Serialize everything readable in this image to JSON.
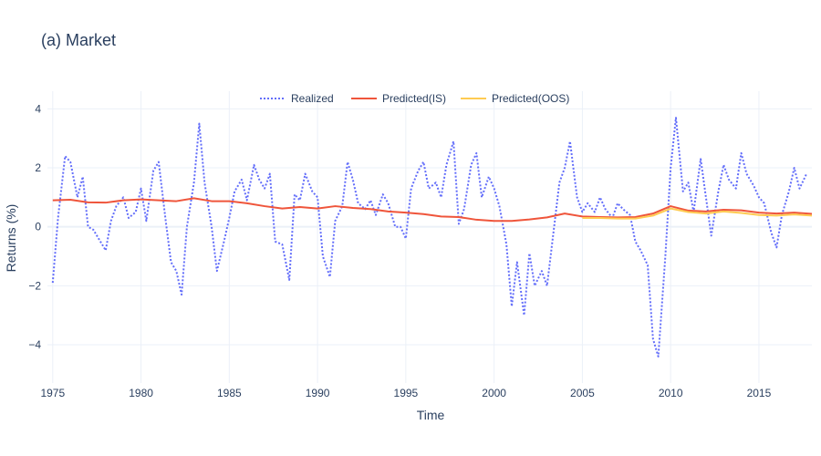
{
  "chart_data": {
    "type": "line",
    "title": "(a) Market",
    "xlabel": "Time",
    "ylabel": "Returns (%)",
    "xlim": [
      1974.7,
      2018.0
    ],
    "ylim": [
      -5.3,
      4.6
    ],
    "x_ticks": [
      1975,
      1980,
      1985,
      1990,
      1995,
      2000,
      2005,
      2010,
      2015
    ],
    "y_ticks": [
      -4,
      -2,
      0,
      2,
      4
    ],
    "y_tick_labels": [
      "−4",
      "−2",
      "0",
      "2",
      "4"
    ],
    "grid": true,
    "legend_position": "top-center",
    "series": [
      {
        "name": "Realized",
        "color": "#636efa",
        "dash": "dot",
        "x": [
          1975.0,
          1975.3,
          1975.7,
          1976.0,
          1976.4,
          1976.7,
          1977.0,
          1977.3,
          1977.6,
          1978.0,
          1978.3,
          1978.6,
          1979.0,
          1979.3,
          1979.7,
          1980.0,
          1980.3,
          1980.7,
          1981.0,
          1981.4,
          1981.7,
          1982.0,
          1982.3,
          1982.6,
          1983.0,
          1983.3,
          1983.6,
          1984.0,
          1984.3,
          1984.7,
          1985.0,
          1985.3,
          1985.7,
          1986.0,
          1986.4,
          1986.7,
          1987.0,
          1987.3,
          1987.6,
          1988.0,
          1988.4,
          1988.7,
          1989.0,
          1989.3,
          1989.7,
          1990.0,
          1990.3,
          1990.7,
          1991.0,
          1991.4,
          1991.7,
          1992.0,
          1992.3,
          1992.7,
          1993.0,
          1993.3,
          1993.7,
          1994.0,
          1994.4,
          1994.7,
          1995.0,
          1995.3,
          1995.7,
          1996.0,
          1996.3,
          1996.7,
          1997.0,
          1997.3,
          1997.7,
          1998.0,
          1998.3,
          1998.7,
          1999.0,
          1999.3,
          1999.7,
          2000.0,
          2000.3,
          2000.7,
          2001.0,
          2001.3,
          2001.7,
          2002.0,
          2002.3,
          2002.7,
          2003.0,
          2003.3,
          2003.7,
          2004.0,
          2004.3,
          2004.7,
          2005.0,
          2005.3,
          2005.7,
          2006.0,
          2006.3,
          2006.7,
          2007.0,
          2007.3,
          2007.7,
          2008.0,
          2008.3,
          2008.7,
          2009.0,
          2009.3,
          2009.7,
          2010.0,
          2010.3,
          2010.7,
          2011.0,
          2011.3,
          2011.7,
          2012.0,
          2012.3,
          2012.7,
          2013.0,
          2013.3,
          2013.7,
          2014.0,
          2014.3,
          2014.7,
          2015.0,
          2015.3,
          2015.7,
          2016.0,
          2016.3,
          2016.7,
          2017.0,
          2017.3,
          2017.7
        ],
        "y": [
          -1.9,
          0.3,
          2.4,
          2.2,
          1.0,
          1.7,
          0.0,
          -0.1,
          -0.4,
          -0.8,
          0.2,
          0.7,
          1.0,
          0.3,
          0.5,
          1.3,
          0.2,
          1.9,
          2.2,
          0.2,
          -1.2,
          -1.5,
          -2.3,
          0.0,
          1.5,
          3.5,
          1.5,
          0.0,
          -1.5,
          -0.5,
          0.3,
          1.2,
          1.6,
          0.9,
          2.1,
          1.6,
          1.3,
          1.8,
          -0.5,
          -0.6,
          -1.8,
          1.1,
          0.9,
          1.8,
          1.2,
          1.0,
          -1.0,
          -1.7,
          0.2,
          0.7,
          2.2,
          1.6,
          0.8,
          0.6,
          0.9,
          0.4,
          1.1,
          0.8,
          0.0,
          0.0,
          -0.4,
          1.3,
          1.9,
          2.2,
          1.3,
          1.5,
          1.0,
          2.1,
          2.9,
          0.1,
          0.6,
          2.1,
          2.5,
          1.0,
          1.7,
          1.3,
          0.7,
          -0.6,
          -2.7,
          -1.2,
          -3.0,
          -0.9,
          -2.0,
          -1.5,
          -2.0,
          -0.5,
          1.5,
          2.0,
          2.9,
          1.0,
          0.5,
          0.8,
          0.5,
          1.0,
          0.6,
          0.3,
          0.8,
          0.6,
          0.4,
          -0.5,
          -0.8,
          -1.3,
          -3.8,
          -4.4,
          -1.0,
          2.0,
          3.7,
          1.2,
          1.5,
          0.5,
          2.3,
          1.0,
          -0.3,
          1.2,
          2.1,
          1.6,
          1.3,
          2.5,
          1.8,
          1.4,
          1.0,
          0.8,
          -0.2,
          -0.7,
          0.4,
          1.2,
          2.0,
          1.3,
          1.8
        ]
      },
      {
        "name": "Predicted(IS)",
        "color": "#ef553b",
        "dash": "solid",
        "x": [
          1975,
          1976,
          1977,
          1978,
          1979,
          1980,
          1981,
          1982,
          1983,
          1984,
          1985,
          1986,
          1987,
          1988,
          1989,
          1990,
          1991,
          1992,
          1993,
          1994,
          1995,
          1996,
          1997,
          1998,
          1999,
          2000,
          2001,
          2002,
          2003,
          2004,
          2005,
          2006,
          2007,
          2008,
          2009,
          2010,
          2011,
          2012,
          2013,
          2014,
          2015,
          2016,
          2017,
          2018
        ],
        "y": [
          0.9,
          0.92,
          0.83,
          0.82,
          0.9,
          0.93,
          0.9,
          0.87,
          0.97,
          0.87,
          0.87,
          0.8,
          0.7,
          0.62,
          0.67,
          0.62,
          0.7,
          0.64,
          0.6,
          0.52,
          0.48,
          0.43,
          0.35,
          0.33,
          0.24,
          0.2,
          0.2,
          0.25,
          0.32,
          0.45,
          0.35,
          0.33,
          0.32,
          0.33,
          0.45,
          0.7,
          0.55,
          0.52,
          0.58,
          0.56,
          0.48,
          0.45,
          0.48,
          0.44
        ]
      },
      {
        "name": "Predicted(OOS)",
        "color": "#fecb52",
        "dash": "solid",
        "x": [
          2005,
          2006,
          2007,
          2008,
          2009,
          2010,
          2011,
          2012,
          2013,
          2014,
          2015,
          2016,
          2017,
          2018
        ],
        "y": [
          0.3,
          0.3,
          0.28,
          0.28,
          0.38,
          0.62,
          0.5,
          0.45,
          0.52,
          0.47,
          0.4,
          0.38,
          0.42,
          0.38
        ]
      }
    ]
  }
}
